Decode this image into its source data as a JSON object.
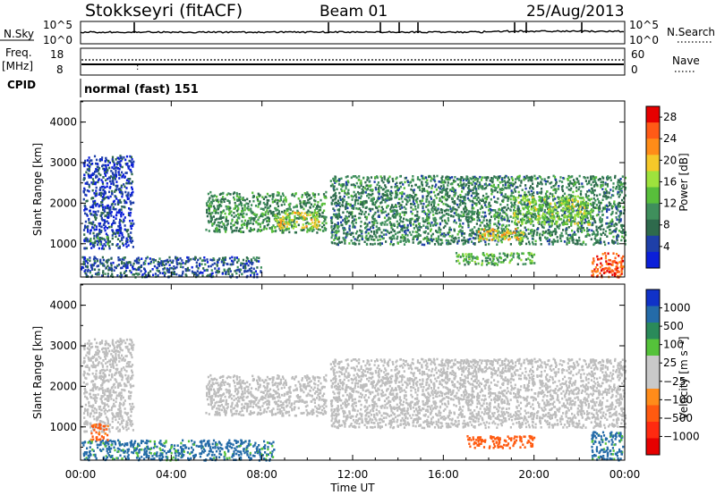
{
  "header": {
    "station": "Stokkseyri (fitACF)",
    "beam": "Beam 01",
    "date": "25/Aug/2013"
  },
  "nsky_panel": {
    "left_label": "N.Sky",
    "left_ticks": [
      "10^5",
      "10^0"
    ],
    "right_ticks": [
      "10^5",
      "10^0"
    ],
    "right_label": "N.Search",
    "right_label_style": "dotted"
  },
  "freq_panel": {
    "left_label_1": "Freq.",
    "left_label_2": "[MHz]",
    "left_ticks": [
      "18",
      "8"
    ],
    "right_ticks": [
      "60",
      "0"
    ],
    "right_label": "Nave",
    "right_label_style": "dotted",
    "cpid_label": "CPID",
    "cpid_text": "normal (fast) 151"
  },
  "colors": {
    "power": [
      "#0b1fd9",
      "#1e3fa8",
      "#2e6a4c",
      "#3f8f5c",
      "#58bf3b",
      "#9ee23d",
      "#f5c829",
      "#ff8c18",
      "#ff5a16",
      "#e60000"
    ],
    "velocity": [
      "#1032c8",
      "#246ba8",
      "#2a8a5a",
      "#55c23a",
      "#c9c9c9",
      "#c9c9c9",
      "#ff8c1a",
      "#ff5a10",
      "#ff2a10",
      "#e60000"
    ],
    "ground_scatter": "#bdbdbd"
  },
  "chart_data": [
    {
      "type": "heatmap",
      "name": "Power",
      "ylabel": "Slant Range [km]",
      "ylim": [
        180,
        4520
      ],
      "yticks": [
        "1000",
        "2000",
        "3000",
        "4000"
      ],
      "xlim_hours": [
        0,
        24
      ],
      "colorbar_label": "Power [dB]",
      "colorbar_ticks": [
        "4",
        "8",
        "12",
        "16",
        "20",
        "24",
        "28"
      ],
      "color_range": [
        0,
        30
      ],
      "regions": [
        {
          "t0": 0.1,
          "t1": 2.3,
          "r0": 900,
          "r1": 3200,
          "level": 4
        },
        {
          "t0": 0.3,
          "t1": 1.2,
          "r0": 1000,
          "r1": 1200,
          "level": 10
        },
        {
          "t0": 5.5,
          "t1": 10.8,
          "r0": 1300,
          "r1": 2300,
          "level": 10
        },
        {
          "t0": 8.5,
          "t1": 10.5,
          "r0": 1400,
          "r1": 1800,
          "level": 18
        },
        {
          "t0": 11.0,
          "t1": 24.0,
          "r0": 1000,
          "r1": 2700,
          "level": 9
        },
        {
          "t0": 17.5,
          "t1": 19.5,
          "r0": 1100,
          "r1": 1400,
          "level": 20
        },
        {
          "t0": 19.0,
          "t1": 22.5,
          "r0": 1500,
          "r1": 2200,
          "level": 15
        },
        {
          "t0": 16.5,
          "t1": 20.0,
          "r0": 500,
          "r1": 800,
          "level": 12
        },
        {
          "t0": 0.0,
          "t1": 8.0,
          "r0": 200,
          "r1": 700,
          "level": 6
        },
        {
          "t0": 22.5,
          "t1": 23.9,
          "r0": 200,
          "r1": 800,
          "level": 26
        }
      ]
    },
    {
      "type": "heatmap",
      "name": "Velocity",
      "ylabel": "Slant Range [km]",
      "ylim": [
        180,
        4520
      ],
      "yticks": [
        "1000",
        "2000",
        "3000",
        "4000"
      ],
      "xlim_hours": [
        0,
        24
      ],
      "xticks": [
        "00:00",
        "04:00",
        "08:00",
        "12:00",
        "16:00",
        "20:00",
        "00:00"
      ],
      "xlabel": "Time UT",
      "colorbar_label": "Velocity [m s⁻¹]",
      "colorbar_ticks": [
        "1000",
        "500",
        "100",
        "25",
        "−25",
        "−100",
        "−500",
        "−1000"
      ],
      "color_range": [
        -1000,
        1000
      ],
      "regions": [
        {
          "t0": 0.1,
          "t1": 2.3,
          "r0": 900,
          "r1": 3200,
          "value": 0
        },
        {
          "t0": 5.5,
          "t1": 10.8,
          "r0": 1300,
          "r1": 2300,
          "value": 0
        },
        {
          "t0": 11.0,
          "t1": 24.0,
          "r0": 1000,
          "r1": 2700,
          "value": 0
        },
        {
          "t0": 0.0,
          "t1": 8.5,
          "r0": 200,
          "r1": 700,
          "value": 200
        },
        {
          "t0": 17.0,
          "t1": 20.0,
          "r0": 500,
          "r1": 800,
          "value": -300
        },
        {
          "t0": 22.5,
          "t1": 23.9,
          "r0": 200,
          "r1": 900,
          "value": 200
        },
        {
          "t0": 0.4,
          "t1": 1.2,
          "r0": 700,
          "r1": 1100,
          "value": -200
        }
      ]
    }
  ]
}
